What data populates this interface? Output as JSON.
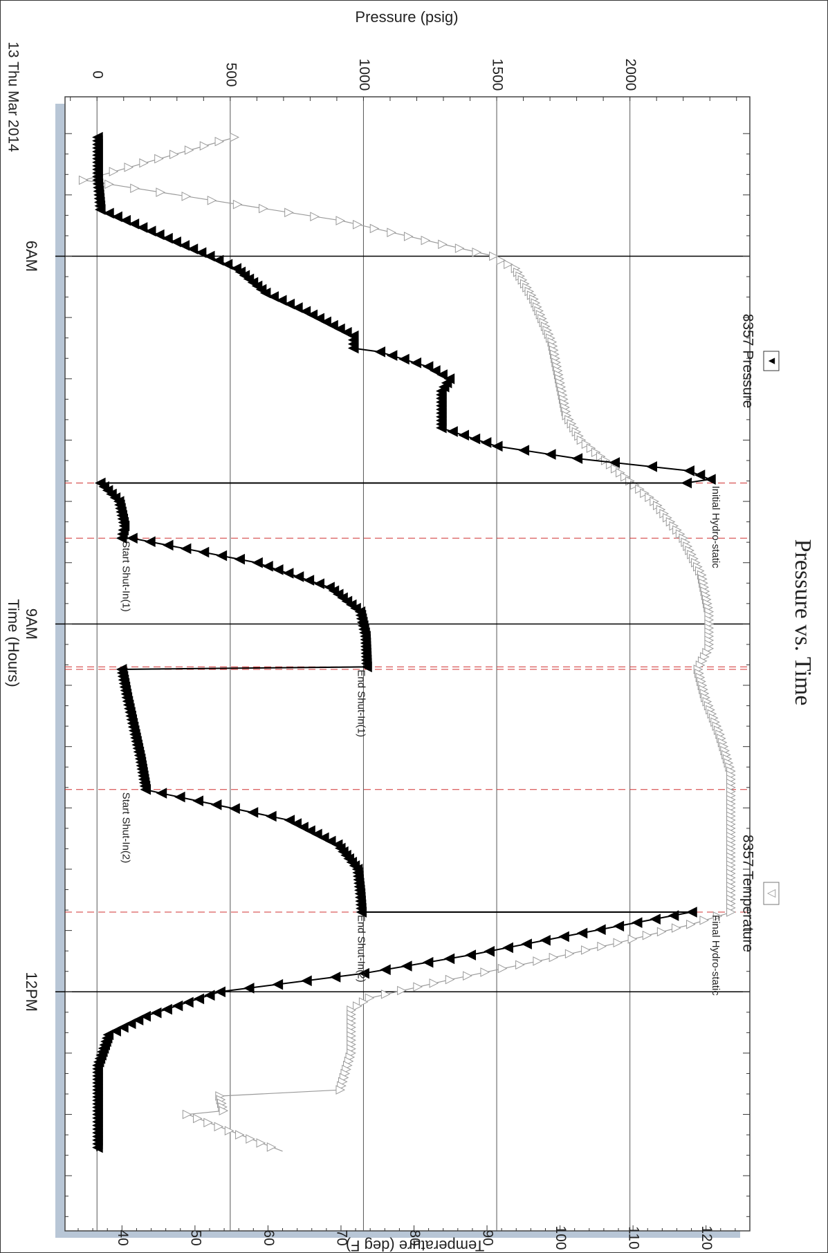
{
  "chart_data": {
    "type": "line",
    "title": "Pressure vs. Time",
    "date_label": "13 Thu Mar 2014",
    "xlabel": "Time (Hours)",
    "x_ticks": [
      {
        "label": "6AM",
        "hour": 6
      },
      {
        "label": "9AM",
        "hour": 9
      },
      {
        "label": "12PM",
        "hour": 12
      }
    ],
    "xlim_hours": [
      4.7,
      13.95
    ],
    "y_pressure": {
      "label": "Pressure (psig)",
      "ticks": [
        "0",
        "500",
        "1000",
        "1500",
        "2000"
      ],
      "tick_values": [
        0,
        500,
        1000,
        1500,
        2000
      ],
      "range": [
        -120,
        2450
      ]
    },
    "y_temperature": {
      "label": "Temperature (deg F)",
      "ticks": [
        "40",
        "50",
        "60",
        "70",
        "80",
        "90",
        "100",
        "110",
        "120"
      ],
      "tick_values": [
        40,
        50,
        60,
        70,
        80,
        90,
        100,
        110,
        120
      ],
      "range": [
        32.2,
        126
      ]
    },
    "legend": [
      {
        "name": "8357 Pressure",
        "symbol": "▼",
        "color": "#000000"
      },
      {
        "name": "8357 Temperature",
        "symbol": "▽",
        "color": "#9a9a9a"
      }
    ],
    "events": [
      {
        "hour": 7.85,
        "label": "Initial Hydro-static",
        "side": "top",
        "color": "#000000"
      },
      {
        "hour": 8.3,
        "label": "Start Shut-In(1)",
        "side": "bottom",
        "color": "#cc0000"
      },
      {
        "hour": 9.35,
        "label": "End Shut-In(1)",
        "side": "mid",
        "color": "#cc0000"
      },
      {
        "hour": 10.35,
        "label": "Start Shut-In(2)",
        "side": "bottom",
        "color": "#cc0000"
      },
      {
        "hour": 11.35,
        "label": "End Shut-In(2)",
        "side": "mid",
        "color": "#cc0000"
      },
      {
        "hour": 11.35,
        "label": "Final Hydro-static",
        "side": "top",
        "color": "#000000"
      }
    ],
    "event_lines_hours": [
      7.85,
      8.3,
      9.35,
      9.37,
      10.35,
      11.35
    ],
    "pressure_series": {
      "name": "8357 Pressure",
      "color": "#000000",
      "points": [
        [
          5.03,
          0
        ],
        [
          5.38,
          0
        ],
        [
          5.62,
          10
        ],
        [
          6.0,
          420
        ],
        [
          6.1,
          520
        ],
        [
          6.3,
          630
        ],
        [
          6.45,
          780
        ],
        [
          6.65,
          960
        ],
        [
          6.75,
          960
        ],
        [
          6.78,
          1060
        ],
        [
          6.9,
          1240
        ],
        [
          7.0,
          1320
        ],
        [
          7.1,
          1290
        ],
        [
          7.25,
          1290
        ],
        [
          7.4,
          1290
        ],
        [
          7.55,
          1500
        ],
        [
          7.65,
          1800
        ],
        [
          7.75,
          2220
        ],
        [
          7.82,
          2300
        ],
        [
          7.85,
          2210
        ],
        [
          7.85,
          10
        ],
        [
          8.0,
          80
        ],
        [
          8.2,
          100
        ],
        [
          8.3,
          90
        ],
        [
          8.3,
          130
        ],
        [
          8.5,
          600
        ],
        [
          8.7,
          870
        ],
        [
          8.9,
          985
        ],
        [
          9.1,
          1005
        ],
        [
          9.35,
          1010
        ],
        [
          9.37,
          90
        ],
        [
          9.6,
          110
        ],
        [
          9.9,
          140
        ],
        [
          10.1,
          160
        ],
        [
          10.35,
          180
        ],
        [
          10.38,
          240
        ],
        [
          10.6,
          720
        ],
        [
          10.8,
          900
        ],
        [
          11.0,
          975
        ],
        [
          11.2,
          985
        ],
        [
          11.35,
          990
        ],
        [
          11.35,
          2230
        ],
        [
          11.55,
          1750
        ],
        [
          11.7,
          1400
        ],
        [
          11.85,
          1000
        ],
        [
          12.0,
          460
        ],
        [
          12.2,
          180
        ],
        [
          12.35,
          40
        ],
        [
          12.6,
          0
        ],
        [
          13.0,
          0
        ],
        [
          13.3,
          0
        ]
      ]
    },
    "temperature_series": {
      "name": "8357 Temperature",
      "color": "#9a9a9a",
      "points": [
        [
          5.03,
          55.5
        ],
        [
          5.38,
          34.8
        ],
        [
          5.71,
          70.0
        ],
        [
          6.0,
          91.0
        ],
        [
          6.1,
          94.0
        ],
        [
          6.35,
          96.5
        ],
        [
          6.7,
          99.0
        ],
        [
          7.0,
          100.0
        ],
        [
          7.3,
          101.0
        ],
        [
          7.5,
          103.0
        ],
        [
          7.7,
          107.0
        ],
        [
          8.0,
          113.0
        ],
        [
          8.3,
          117.0
        ],
        [
          8.6,
          119.5
        ],
        [
          8.9,
          120.5
        ],
        [
          9.2,
          120.5
        ],
        [
          9.37,
          119.0
        ],
        [
          9.6,
          120.0
        ],
        [
          9.9,
          122.0
        ],
        [
          10.2,
          123.5
        ],
        [
          10.6,
          123.5
        ],
        [
          11.0,
          123.5
        ],
        [
          11.35,
          123.5
        ],
        [
          11.45,
          118.0
        ],
        [
          11.6,
          108.0
        ],
        [
          11.75,
          97.0
        ],
        [
          11.9,
          85.0
        ],
        [
          12.05,
          74.0
        ],
        [
          12.15,
          71.5
        ],
        [
          12.5,
          71.5
        ],
        [
          12.8,
          70.0
        ],
        [
          12.85,
          53.5
        ],
        [
          12.97,
          54.0
        ],
        [
          13.0,
          49.0
        ],
        [
          13.3,
          62.0
        ]
      ]
    }
  }
}
